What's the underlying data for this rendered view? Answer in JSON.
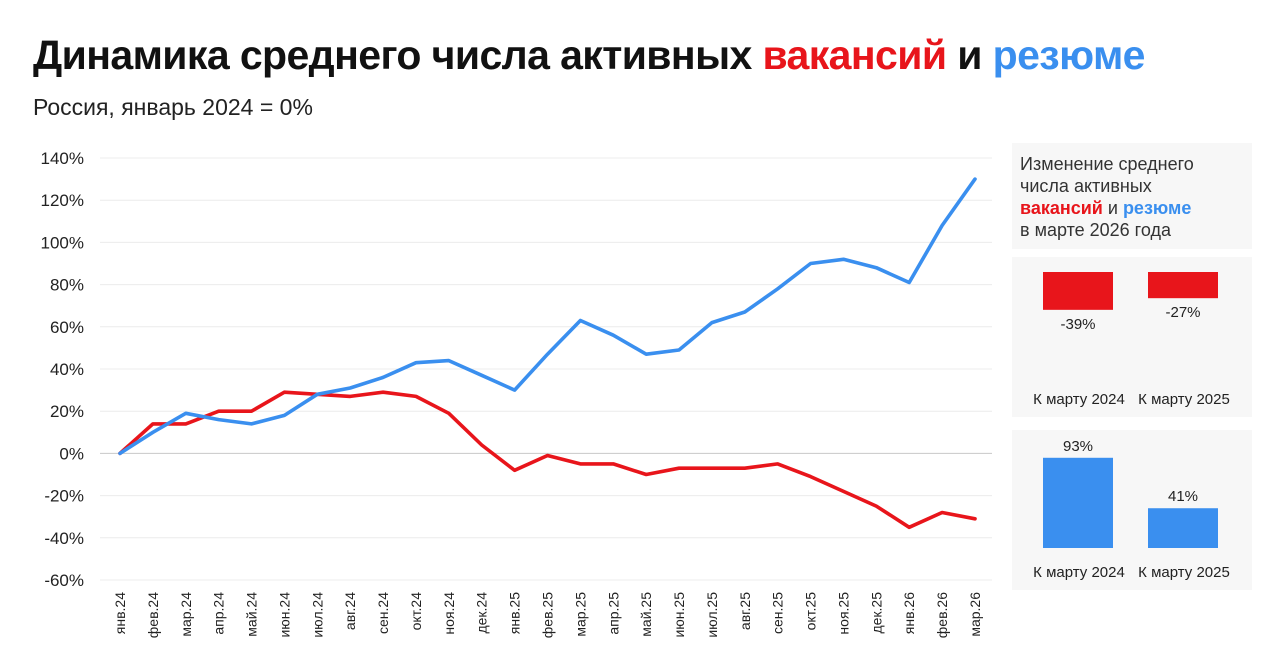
{
  "title": {
    "part1": "Динамика среднего числа активных ",
    "vacancies": "вакансий",
    "and": " и ",
    "resumes": "резюме"
  },
  "subtitle": "Россия, январь 2024 = 0%",
  "colors": {
    "vacancies": "#e8151b",
    "resumes": "#3a8fef",
    "grid": "#ececec",
    "zero": "#c8c8c8"
  },
  "chart_data": [
    {
      "type": "line",
      "title": "Динамика среднего числа активных вакансий и резюме",
      "subtitle": "Россия, январь 2024 = 0%",
      "categories": [
        "янв.24",
        "фев.24",
        "мар.24",
        "апр.24",
        "май.24",
        "июн.24",
        "июл.24",
        "авг.24",
        "сен.24",
        "окт.24",
        "ноя.24",
        "дек.24",
        "янв.25",
        "фев.25",
        "мар.25",
        "апр.25",
        "май.25",
        "июн.25",
        "июл.25",
        "авг.25",
        "сен.25",
        "окт.25",
        "ноя.25",
        "дек.25",
        "янв.26",
        "фев.26",
        "мар.26"
      ],
      "series": [
        {
          "name": "вакансий",
          "color": "#e8151b",
          "values": [
            0,
            14,
            14,
            20,
            20,
            29,
            28,
            27,
            29,
            27,
            19,
            4,
            -8,
            -1,
            -5,
            -5,
            -10,
            -7,
            -7,
            -7,
            -5,
            -11,
            -18,
            -25,
            -35,
            -28,
            -31
          ]
        },
        {
          "name": "резюме",
          "color": "#3a8fef",
          "values": [
            0,
            10,
            19,
            16,
            14,
            18,
            28,
            31,
            36,
            43,
            44,
            37,
            30,
            47,
            63,
            56,
            47,
            49,
            62,
            67,
            78,
            90,
            92,
            88,
            81,
            108,
            130
          ]
        }
      ],
      "yticks": [
        "140%",
        "120%",
        "100%",
        "80%",
        "60%",
        "40%",
        "20%",
        "0%",
        "-20%",
        "-40%",
        "-60%"
      ],
      "ylim": [
        -60,
        140
      ],
      "grid": true
    },
    {
      "type": "bar",
      "categories": [
        "К марту 2024",
        "К марту 2025"
      ],
      "values": [
        -39,
        -27
      ],
      "labels": [
        "-39%",
        "-27%"
      ],
      "color": "#e8151b"
    },
    {
      "type": "bar",
      "categories": [
        "К марту 2024",
        "К марту 2025"
      ],
      "values": [
        93,
        41
      ],
      "labels": [
        "93%",
        "41%"
      ],
      "color": "#3a8fef"
    }
  ],
  "side": {
    "line1": "Изменение среднего",
    "line2": "числа активных",
    "vacancies": "вакансий",
    "and": " и ",
    "resumes": "резюме",
    "line4": "в марте 2026 года"
  }
}
